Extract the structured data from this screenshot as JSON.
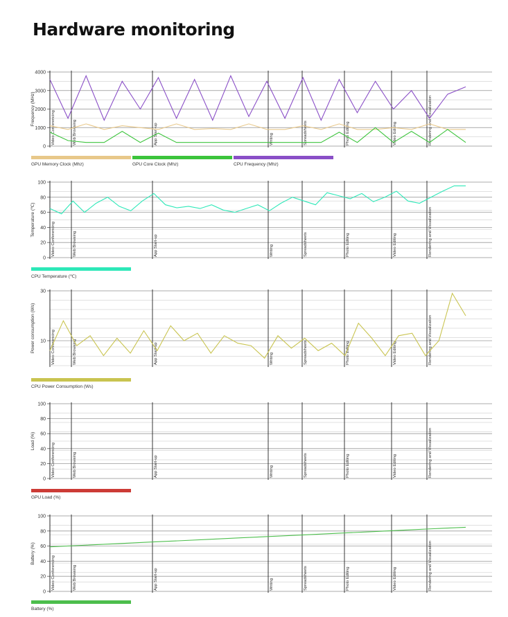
{
  "page": {
    "title": "Hardware monitoring"
  },
  "activities": [
    "Video Conferencing",
    "Web Browsing",
    "App Start-up",
    "Writing",
    "Spreadsheets",
    "Photo Editing",
    "Video Editing",
    "Rendering and Visualization"
  ],
  "chart_data": [
    {
      "type": "line",
      "ylabel": "Frequency (MHz)",
      "ylim": [
        0,
        4000
      ],
      "yticks": [
        0,
        1000,
        2000,
        3000,
        4000
      ],
      "grid": true,
      "legend": "bottom",
      "series": [
        {
          "name": "GPU Memory Clock (Mhz)",
          "color": "#e8c88a",
          "values": [
            1100,
            900,
            1200,
            900,
            1100,
            1000,
            900,
            1200,
            900,
            950,
            900,
            1200,
            900,
            900,
            1100,
            900,
            1200,
            900,
            900,
            1000,
            900,
            1200,
            900,
            900
          ]
        },
        {
          "name": "GPU Core Clock (Mhz)",
          "color": "#3cc43c",
          "values": [
            750,
            300,
            200,
            200,
            800,
            200,
            700,
            200,
            200,
            200,
            200,
            200,
            200,
            200,
            200,
            200,
            750,
            200,
            1000,
            200,
            800,
            200,
            900,
            200
          ]
        },
        {
          "name": "CPU Frequency (Mhz)",
          "color": "#8a4fc7",
          "values": [
            3600,
            1500,
            3800,
            1400,
            3500,
            2000,
            3700,
            1500,
            3600,
            1400,
            3800,
            1600,
            3500,
            1500,
            3700,
            1400,
            3600,
            1800,
            3500,
            2000,
            3000,
            1500,
            2800,
            3200
          ]
        }
      ]
    },
    {
      "type": "line",
      "ylabel": "Temperature (℃)",
      "ylim": [
        0,
        100
      ],
      "yticks": [
        0,
        20,
        40,
        60,
        80,
        100
      ],
      "grid": true,
      "legend": "bottom",
      "series": [
        {
          "name": "CPU Temperature (℃)",
          "color": "#2de8b8",
          "values": [
            65,
            58,
            75,
            60,
            72,
            80,
            68,
            62,
            75,
            85,
            70,
            66,
            68,
            65,
            70,
            63,
            60,
            65,
            70,
            62,
            72,
            80,
            75,
            70,
            86,
            82,
            78,
            85,
            74,
            80,
            88,
            75,
            72,
            80,
            88,
            95,
            95
          ]
        }
      ]
    },
    {
      "type": "line",
      "ylabel": "Power consumption (Ws)",
      "ylim": [
        0,
        30
      ],
      "yticks": [
        10,
        30
      ],
      "grid": true,
      "legend": "bottom",
      "series": [
        {
          "name": "CPU Power Consumption (Ws)",
          "color": "#c9c450",
          "values": [
            6,
            18,
            8,
            12,
            4,
            11,
            5,
            14,
            6,
            16,
            10,
            13,
            5,
            12,
            9,
            8,
            3,
            12,
            7,
            11,
            6,
            9,
            4,
            17,
            11,
            4,
            12,
            13,
            4,
            10,
            29,
            20
          ]
        }
      ]
    },
    {
      "type": "line",
      "ylabel": "Load (%)",
      "ylim": [
        0,
        100
      ],
      "yticks": [
        0,
        20,
        40,
        60,
        80,
        100
      ],
      "grid": true,
      "legend": "bottom",
      "series": [
        {
          "name": "GPU Load (%)",
          "color": "#cc3b36",
          "values": []
        }
      ]
    },
    {
      "type": "line",
      "ylabel": "Battery (%)",
      "ylim": [
        0,
        100
      ],
      "yticks": [
        0,
        20,
        40,
        60,
        80,
        100
      ],
      "grid": true,
      "legend": "bottom",
      "series": [
        {
          "name": "Battery (%)",
          "color": "#4cbe4c",
          "values": [
            59,
            61,
            63,
            65,
            67,
            69,
            71,
            73,
            75,
            77,
            79,
            81,
            83,
            85
          ]
        }
      ]
    }
  ]
}
